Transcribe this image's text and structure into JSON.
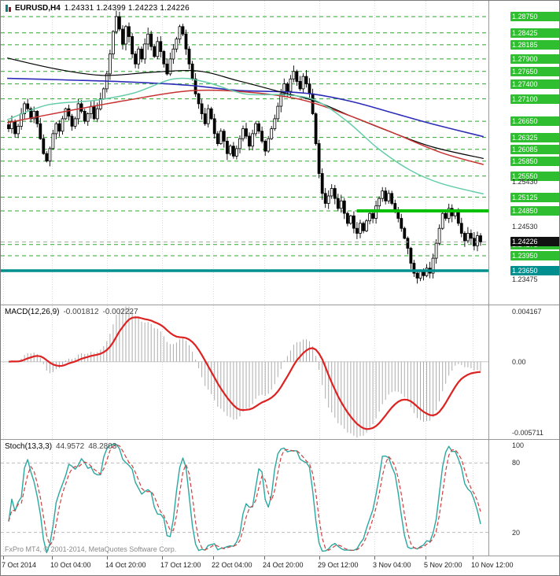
{
  "colors": {
    "background": "#FFFFFF",
    "panel_border": "#9A9A9A",
    "grid": "#DCDCDC",
    "level_green_line": "#2FA52F",
    "level_green_box": "#2FBE2F",
    "level_teal": "#008F8F",
    "thick_green": "#00C000",
    "candle_up": "#FFFFFF",
    "candle_down": "#000000",
    "candle_border": "#000000",
    "ma_blue": "#2C2CB8",
    "ma_black": "#000000",
    "ma_red": "#C83232",
    "ma_green": "#66CDAA",
    "macd_hist": "#ABABAB",
    "macd_signal": "#DD2222",
    "stoch_main": "#2AA8A0",
    "stoch_signal": "#D04040",
    "current_price_box": "#111111",
    "zero_line": "#C8C8C8",
    "stoch_grid": "#BDBDBD",
    "current_price_line": "#AAAAAA"
  },
  "header": {
    "symbol": "EURUSD,H4",
    "ohlc": "1.24331 1.24399 1.24223 1.24226"
  },
  "macd_panel": {
    "title": "MACD(12,26,9)",
    "value_main": "-0.001812",
    "value_signal": "-0.002227",
    "axis_max": "0.004167",
    "axis_zero": "0.00",
    "axis_min": "-0.005711"
  },
  "stoch_panel": {
    "title": "Stoch(13,3,3)",
    "value_main": "44.9572",
    "value_signal": "48.2803",
    "axis_labels": [
      "100",
      "80",
      "20"
    ]
  },
  "footer": {
    "copyright": "FxPro MT4, © 2001-2014, MetaQuotes Software Corp."
  },
  "time_axis": {
    "labels": [
      "7 Oct 2014",
      "10 Oct 04:00",
      "14 Oct 20:00",
      "17 Oct 12:00",
      "22 Oct 04:00",
      "24 Oct 20:00",
      "29 Oct 12:00",
      "3 Nov 04:00",
      "5 Nov 20:00",
      "10 Nov 12:00"
    ],
    "fracs": [
      0.005,
      0.105,
      0.218,
      0.331,
      0.435,
      0.54,
      0.653,
      0.766,
      0.871,
      0.968
    ]
  },
  "price_axis": {
    "green_levels": [
      1.2875,
      1.28425,
      1.28185,
      1.279,
      1.2765,
      1.274,
      1.271,
      1.2665,
      1.26325,
      1.26085,
      1.2585,
      1.2555,
      1.25125,
      1.2485,
      1.24175,
      1.2395
    ],
    "teal_level": 1.2365,
    "plain_ticks": [
      1.2543,
      1.2453,
      1.23475
    ],
    "current_price": 1.24226,
    "thick_green_level": 1.2485,
    "thick_green_start_frac": 0.73
  },
  "chart_data": {
    "type": "candlestick",
    "symbol": "EURUSD",
    "timeframe": "H4",
    "title": "EURUSD,H4 1.24331 1.24399 1.24223 1.24226",
    "price_view": {
      "min": 1.2297,
      "max": 1.29068
    },
    "current_ohlc": {
      "open": 1.24331,
      "high": 1.24399,
      "low": 1.24223,
      "close": 1.24226
    },
    "support_resistance_levels": [
      1.2875,
      1.28425,
      1.28185,
      1.279,
      1.2765,
      1.274,
      1.271,
      1.2665,
      1.26325,
      1.26085,
      1.2585,
      1.2555,
      1.25125,
      1.2485,
      1.24175,
      1.2395,
      1.2365
    ],
    "closes": [
      1.265,
      1.2665,
      1.264,
      1.2655,
      1.268,
      1.27,
      1.269,
      1.267,
      1.2685,
      1.266,
      1.263,
      1.26,
      1.2585,
      1.261,
      1.264,
      1.266,
      1.2645,
      1.267,
      1.269,
      1.2675,
      1.2655,
      1.267,
      1.27,
      1.2685,
      1.2665,
      1.268,
      1.2695,
      1.267,
      1.269,
      1.271,
      1.273,
      1.276,
      1.28,
      1.2845,
      1.2875,
      1.285,
      1.282,
      1.2855,
      1.2835,
      1.28,
      1.278,
      1.281,
      1.279,
      1.282,
      1.284,
      1.2815,
      1.2795,
      1.2825,
      1.2805,
      1.278,
      1.276,
      1.279,
      1.281,
      1.283,
      1.2855,
      1.284,
      1.281,
      1.278,
      1.275,
      1.272,
      1.27,
      1.268,
      1.266,
      1.269,
      1.267,
      1.264,
      1.262,
      1.2645,
      1.2625,
      1.26,
      1.2615,
      1.2595,
      1.261,
      1.263,
      1.265,
      1.2635,
      1.2615,
      1.264,
      1.266,
      1.2645,
      1.2625,
      1.2605,
      1.263,
      1.265,
      1.267,
      1.2695,
      1.272,
      1.274,
      1.2725,
      1.275,
      1.2765,
      1.2745,
      1.273,
      1.2755,
      1.274,
      1.272,
      1.268,
      1.262,
      1.256,
      1.252,
      1.25,
      1.2515,
      1.253,
      1.251,
      1.249,
      1.2505,
      1.248,
      1.246,
      1.2475,
      1.245,
      1.244,
      1.246,
      1.2445,
      1.2465,
      1.248,
      1.247,
      1.2495,
      1.251,
      1.2525,
      1.2505,
      1.252,
      1.25,
      1.2485,
      1.247,
      1.245,
      1.243,
      1.241,
      1.238,
      1.236,
      1.235,
      1.2365,
      1.2355,
      1.237,
      1.236,
      1.239,
      1.242,
      1.245,
      1.248,
      1.247,
      1.249,
      1.2475,
      1.2485,
      1.246,
      1.244,
      1.2425,
      1.244,
      1.243,
      1.2415,
      1.2435,
      1.24226
    ],
    "moving_averages": [
      {
        "name": "ma-slow-blue",
        "color_key": "ma_blue",
        "width": 1.6,
        "points": [
          [
            0.013,
            1.2751
          ],
          [
            0.129,
            1.2748
          ],
          [
            0.258,
            1.2744
          ],
          [
            0.387,
            1.2737
          ],
          [
            0.484,
            1.2727
          ],
          [
            0.581,
            1.2724
          ],
          [
            0.645,
            1.2719
          ],
          [
            0.726,
            1.2703
          ],
          [
            0.806,
            1.2681
          ],
          [
            0.887,
            1.2659
          ],
          [
            0.99,
            1.2634
          ]
        ]
      },
      {
        "name": "ma-medium-black",
        "color_key": "ma_black",
        "width": 1.2,
        "points": [
          [
            0.013,
            1.2792
          ],
          [
            0.113,
            1.277
          ],
          [
            0.21,
            1.2757
          ],
          [
            0.306,
            1.2763
          ],
          [
            0.403,
            1.2766
          ],
          [
            0.484,
            1.2747
          ],
          [
            0.565,
            1.2726
          ],
          [
            0.645,
            1.2705
          ],
          [
            0.726,
            1.2672
          ],
          [
            0.806,
            1.2641
          ],
          [
            0.887,
            1.2613
          ],
          [
            0.99,
            1.259
          ]
        ]
      },
      {
        "name": "ma-medium-red",
        "color_key": "ma_red",
        "width": 1.5,
        "points": [
          [
            0.013,
            1.2662
          ],
          [
            0.129,
            1.2684
          ],
          [
            0.258,
            1.2707
          ],
          [
            0.387,
            1.2726
          ],
          [
            0.5,
            1.2724
          ],
          [
            0.613,
            1.2709
          ],
          [
            0.71,
            1.2678
          ],
          [
            0.806,
            1.2641
          ],
          [
            0.903,
            1.2602
          ],
          [
            0.99,
            1.2578
          ]
        ]
      },
      {
        "name": "ma-fast-green",
        "color_key": "ma_green",
        "width": 1.5,
        "points": [
          [
            0.013,
            1.2668
          ],
          [
            0.097,
            1.2698
          ],
          [
            0.194,
            1.2707
          ],
          [
            0.274,
            1.2722
          ],
          [
            0.355,
            1.275
          ],
          [
            0.419,
            1.2744
          ],
          [
            0.5,
            1.272
          ],
          [
            0.581,
            1.2718
          ],
          [
            0.645,
            1.2707
          ],
          [
            0.71,
            1.2665
          ],
          [
            0.774,
            1.261
          ],
          [
            0.839,
            1.2567
          ],
          [
            0.903,
            1.254
          ],
          [
            0.99,
            1.2519
          ]
        ]
      }
    ],
    "indicators": {
      "macd": {
        "params": [
          12,
          26,
          9
        ],
        "current_main": -0.001812,
        "current_signal": -0.002227,
        "display_min": -0.005711,
        "display_max": 0.004167
      },
      "stochastic": {
        "params": [
          13,
          3,
          3
        ],
        "current_main": 44.9572,
        "current_signal": 48.2803,
        "display_min": 0,
        "display_max": 100,
        "grid_levels": [
          80,
          20
        ]
      }
    }
  }
}
